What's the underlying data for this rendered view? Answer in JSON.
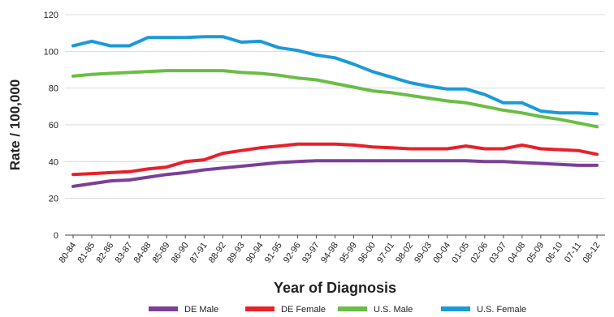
{
  "chart_data": {
    "type": "line",
    "title": "",
    "xlabel": "Year of Diagnosis",
    "ylabel": "Rate / 100,000",
    "ylim": [
      0,
      120
    ],
    "yticks": [
      0,
      20,
      40,
      60,
      80,
      100,
      120
    ],
    "grid": true,
    "legend_position": "bottom",
    "categories": [
      "80-84",
      "81-85",
      "82-86",
      "83-87",
      "84-88",
      "85-89",
      "86-90",
      "87-91",
      "88-92",
      "89-93",
      "90-94",
      "91-95",
      "92-96",
      "93-97",
      "94-98",
      "95-99",
      "96-00",
      "97-01",
      "98-02",
      "99-03",
      "00-04",
      "01-05",
      "02-06",
      "03-07",
      "04-08",
      "05-09",
      "06-10",
      "07-11",
      "08-12"
    ],
    "series": [
      {
        "name": "DE Male",
        "color": "#7b3f98",
        "values": [
          26.5,
          28,
          29.5,
          30,
          31.5,
          33,
          34,
          35.5,
          36.5,
          37.5,
          38.5,
          39.5,
          40,
          40.5,
          40.5,
          40.5,
          40.5,
          40.5,
          40.5,
          40.5,
          40.5,
          40.5,
          40,
          40,
          39.5,
          39,
          38.5,
          38,
          38
        ]
      },
      {
        "name": "DE Female",
        "color": "#e8202a",
        "values": [
          33,
          33.5,
          34,
          34.5,
          36,
          37,
          40,
          41,
          44.5,
          46,
          47.5,
          48.5,
          49.5,
          49.5,
          49.5,
          49,
          48,
          47.5,
          47,
          47,
          47,
          48.5,
          47,
          47,
          49,
          47,
          46.5,
          46,
          44
        ]
      },
      {
        "name": "U.S. Male",
        "color": "#6abd45",
        "values": [
          86.5,
          87.5,
          88,
          88.5,
          89,
          89.5,
          89.5,
          89.5,
          89.5,
          88.5,
          88,
          87,
          85.5,
          84.5,
          82.5,
          80.5,
          78.5,
          77.5,
          76,
          74.5,
          73,
          72,
          70,
          68,
          66.5,
          64.5,
          63,
          61,
          59
        ]
      },
      {
        "name": "U.S. Female",
        "color": "#1b9ad6",
        "values": [
          103,
          105.5,
          103,
          103,
          107.5,
          107.5,
          107.5,
          108,
          108,
          105,
          105.5,
          102,
          100.5,
          98,
          96.5,
          93,
          89,
          86,
          83,
          81,
          79.5,
          79.5,
          76.5,
          72,
          72,
          67.5,
          66.5,
          66.5,
          66
        ]
      }
    ]
  }
}
